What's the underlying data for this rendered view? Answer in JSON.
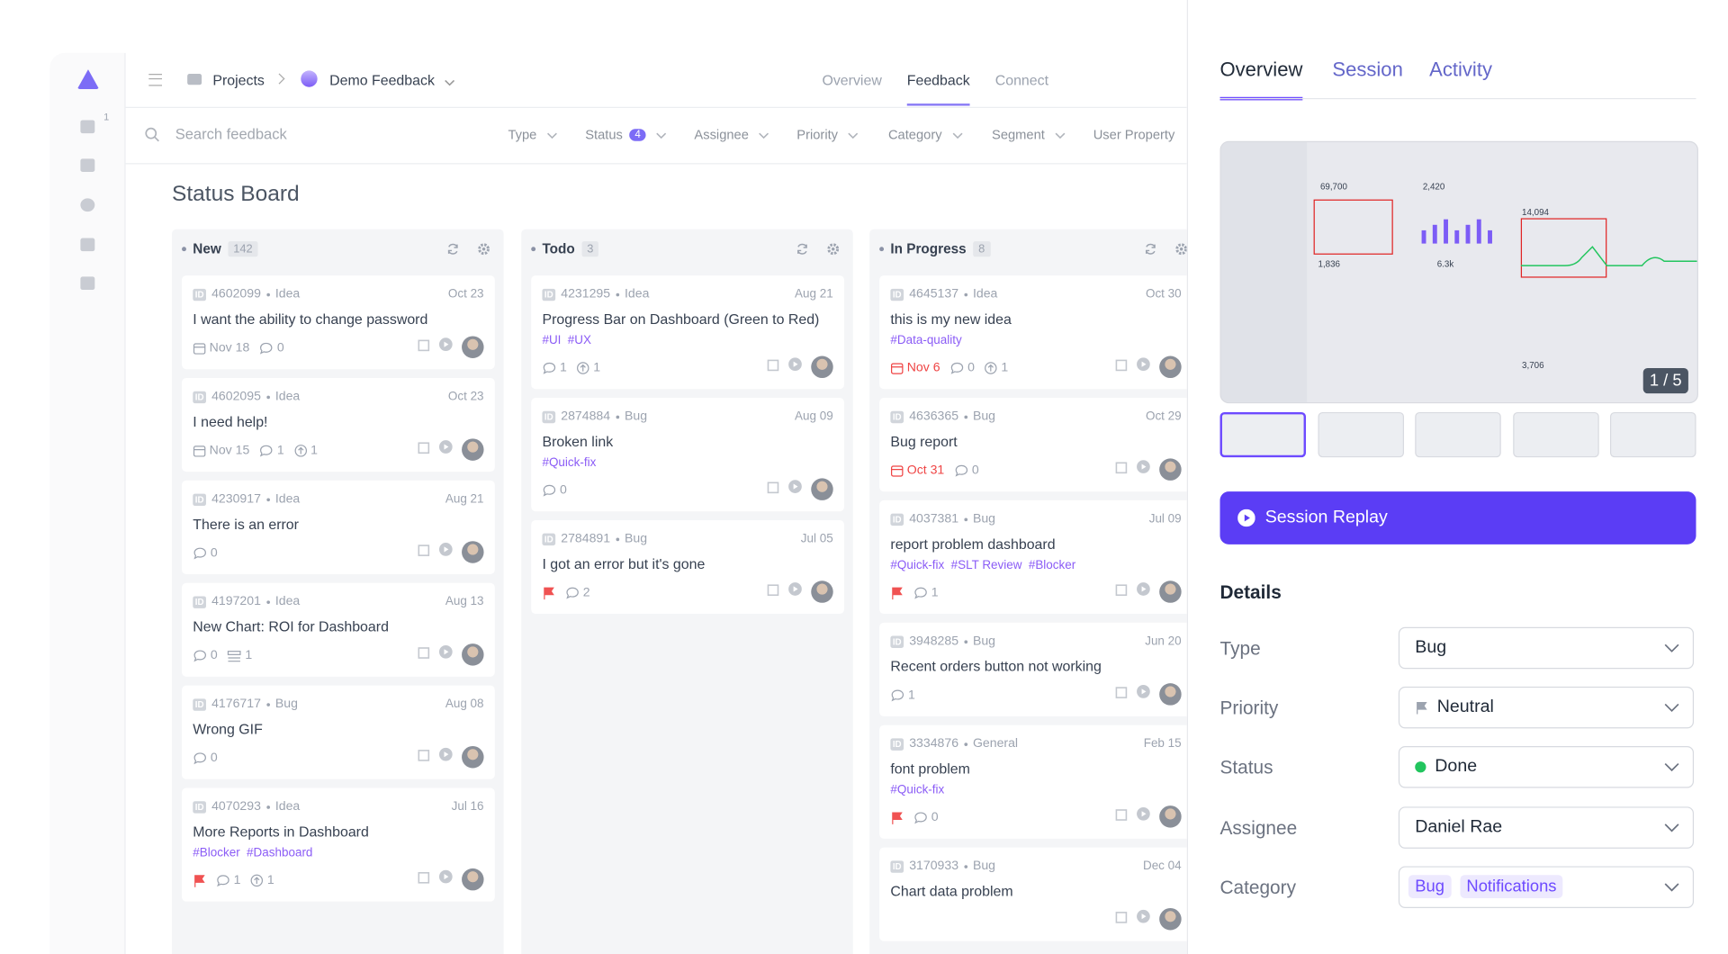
{
  "sidebar": {
    "badge": "1"
  },
  "topbar": {
    "breadcrumb": [
      "Projects",
      "Demo Feedback"
    ],
    "tabs": [
      "Overview",
      "Feedback",
      "Connect"
    ],
    "active_tab": 1
  },
  "search": {
    "placeholder": "Search feedback",
    "filters": [
      {
        "label": "Type"
      },
      {
        "label": "Status",
        "count": 4
      },
      {
        "label": "Assignee"
      },
      {
        "label": "Priority"
      },
      {
        "label": "Category"
      },
      {
        "label": "Segment"
      },
      {
        "label": "User Property"
      }
    ]
  },
  "board": {
    "title": "Status Board",
    "id_badge": "ID",
    "columns": [
      {
        "name": "New",
        "count": 142,
        "cards": [
          {
            "id": "4602099",
            "type": "Idea",
            "date": "Oct 23",
            "title": "I want the ability to change password",
            "due": "Nov 18",
            "comments": 0
          },
          {
            "id": "4602095",
            "type": "Idea",
            "date": "Oct 23",
            "title": "I need help!",
            "due": "Nov 15",
            "comments": 1,
            "votes": 1
          },
          {
            "id": "4230917",
            "type": "Idea",
            "date": "Aug 21",
            "title": "There is an error",
            "comments": 0
          },
          {
            "id": "4197201",
            "type": "Idea",
            "date": "Aug 13",
            "title": "New Chart: ROI for Dashboard",
            "comments": 0,
            "list": 1
          },
          {
            "id": "4176717",
            "type": "Bug",
            "date": "Aug 08",
            "title": "Wrong GIF",
            "comments": 0
          },
          {
            "id": "4070293",
            "type": "Idea",
            "date": "Jul 16",
            "title": "More Reports in Dashboard",
            "tags": [
              "#Blocker",
              "#Dashboard"
            ],
            "flag": true,
            "comments": 1,
            "votes": 1
          }
        ]
      },
      {
        "name": "Todo",
        "count": 3,
        "cards": [
          {
            "id": "4231295",
            "type": "Idea",
            "date": "Aug 21",
            "title": "Progress Bar on Dashboard (Green to Red)",
            "tags": [
              "#UI",
              "#UX"
            ],
            "comments": 1,
            "votes": 1
          },
          {
            "id": "2874884",
            "type": "Bug",
            "date": "Aug 09",
            "title": "Broken link",
            "tags": [
              "#Quick-fix"
            ],
            "comments": 0
          },
          {
            "id": "2784891",
            "type": "Bug",
            "date": "Jul 05",
            "title": "I got an error but it's gone",
            "flag": true,
            "comments": 2
          }
        ]
      },
      {
        "name": "In Progress",
        "count": 8,
        "cards": [
          {
            "id": "4645137",
            "type": "Idea",
            "date": "Oct 30",
            "title": "this is my new idea",
            "tags": [
              "#Data-quality"
            ],
            "due": "Nov 6",
            "overdue": true,
            "comments": 0,
            "votes": 1
          },
          {
            "id": "4636365",
            "type": "Bug",
            "date": "Oct 29",
            "title": "Bug report",
            "due": "Oct 31",
            "overdue": true,
            "comments": 0
          },
          {
            "id": "4037381",
            "type": "Bug",
            "date": "Jul 09",
            "title": "report problem dashboard",
            "tags": [
              "#Quick-fix",
              "#SLT Review",
              "#Blocker"
            ],
            "flag": true,
            "comments": 1
          },
          {
            "id": "3948285",
            "type": "Bug",
            "date": "Jun 20",
            "title": "Recent orders button not working",
            "comments": 1
          },
          {
            "id": "3334876",
            "type": "General",
            "date": "Feb 15",
            "title": "font problem",
            "tags": [
              "#Quick-fix"
            ],
            "flag": true,
            "comments": 0
          },
          {
            "id": "3170933",
            "type": "Bug",
            "date": "Dec 04",
            "title": "Chart data problem"
          }
        ]
      }
    ]
  },
  "panel": {
    "tabs": [
      "Overview",
      "Session",
      "Activity"
    ],
    "active_tab": 0,
    "preview": {
      "labels": [
        "69,700",
        "2,420",
        "14,094",
        "1,836",
        "6.3k",
        "3,706"
      ],
      "pager": "1 / 5",
      "thumbnails": 5
    },
    "button": "Session Replay",
    "details_title": "Details",
    "fields": [
      {
        "label": "Type",
        "value": "Bug"
      },
      {
        "label": "Priority",
        "value": "Neutral",
        "icon": "flag"
      },
      {
        "label": "Status",
        "value": "Done",
        "dot_color": "#22c55e"
      },
      {
        "label": "Assignee",
        "value": "Daniel Rae"
      },
      {
        "label": "Category",
        "chips": [
          "Bug",
          "Notifications"
        ]
      }
    ]
  }
}
